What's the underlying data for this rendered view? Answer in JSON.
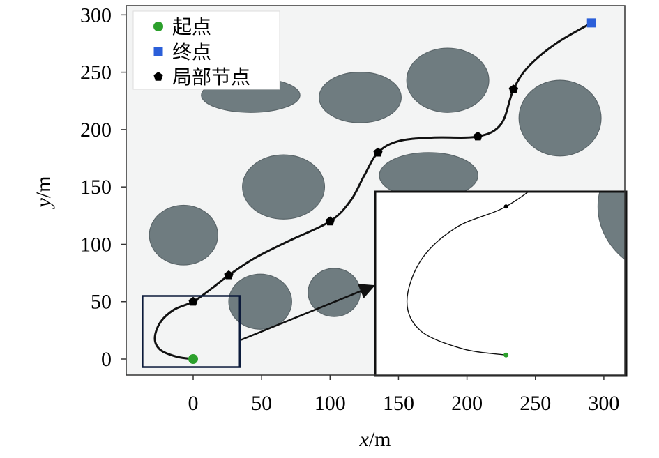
{
  "chart_data": {
    "type": "line",
    "title": "",
    "xlabel": "x/m",
    "ylabel": "y/m",
    "xlabel_var": "x",
    "ylabel_var": "y",
    "unit": "/m",
    "xlim": [
      -50,
      315
    ],
    "ylim": [
      -15,
      310
    ],
    "xticks": [
      0,
      50,
      100,
      150,
      200,
      250,
      300
    ],
    "yticks": [
      0,
      50,
      100,
      150,
      200,
      250,
      300
    ],
    "grid": false,
    "legend": {
      "placement": "top-left",
      "entries": [
        {
          "key": "start",
          "label": "起点",
          "marker": "circle",
          "color": "#2ca02c"
        },
        {
          "key": "goal",
          "label": "终点",
          "marker": "square",
          "color": "#2b5fd9"
        },
        {
          "key": "local",
          "label": "局部节点",
          "marker": "pentagon",
          "color": "#000000"
        }
      ]
    },
    "start": {
      "x": 0,
      "y": 0
    },
    "goal": {
      "x": 291,
      "y": 293
    },
    "local_nodes": [
      {
        "x": 0,
        "y": 50
      },
      {
        "x": 26,
        "y": 73
      },
      {
        "x": 100,
        "y": 120
      },
      {
        "x": 135,
        "y": 180
      },
      {
        "x": 208,
        "y": 194
      },
      {
        "x": 234,
        "y": 235
      }
    ],
    "path": [
      [
        0,
        0
      ],
      [
        -12,
        2
      ],
      [
        -24,
        8
      ],
      [
        -28,
        18
      ],
      [
        -24,
        32
      ],
      [
        -14,
        43
      ],
      [
        0,
        50
      ],
      [
        13,
        61
      ],
      [
        26,
        73
      ],
      [
        45,
        88
      ],
      [
        70,
        103
      ],
      [
        100,
        120
      ],
      [
        115,
        138
      ],
      [
        125,
        160
      ],
      [
        135,
        180
      ],
      [
        150,
        190
      ],
      [
        175,
        193
      ],
      [
        208,
        194
      ],
      [
        225,
        205
      ],
      [
        234,
        235
      ],
      [
        245,
        255
      ],
      [
        265,
        275
      ],
      [
        291,
        293
      ]
    ],
    "obstacles": [
      {
        "cx": 42,
        "cy": 230,
        "rx": 36,
        "ry": 15
      },
      {
        "cx": 122,
        "cy": 228,
        "rx": 30,
        "ry": 22
      },
      {
        "cx": 186,
        "cy": 243,
        "rx": 30,
        "ry": 28
      },
      {
        "cx": 268,
        "cy": 210,
        "rx": 30,
        "ry": 33
      },
      {
        "cx": 66,
        "cy": 150,
        "rx": 30,
        "ry": 28
      },
      {
        "cx": 172,
        "cy": 160,
        "rx": 36,
        "ry": 20
      },
      {
        "cx": -7,
        "cy": 108,
        "rx": 25,
        "ry": 26
      },
      {
        "cx": 49,
        "cy": 50,
        "rx": 23,
        "ry": 24
      },
      {
        "cx": 103,
        "cy": 58,
        "rx": 19,
        "ry": 21
      }
    ],
    "zoom_region": {
      "x0": -37,
      "x1": 34,
      "y0": -7,
      "y1": 55
    },
    "inset_curve": [
      [
        0,
        0
      ],
      [
        -12,
        2
      ],
      [
        -24,
        8
      ],
      [
        -28,
        18
      ],
      [
        -24,
        32
      ],
      [
        -14,
        43
      ],
      [
        0,
        50
      ],
      [
        13,
        61
      ],
      [
        26,
        73
      ]
    ]
  }
}
